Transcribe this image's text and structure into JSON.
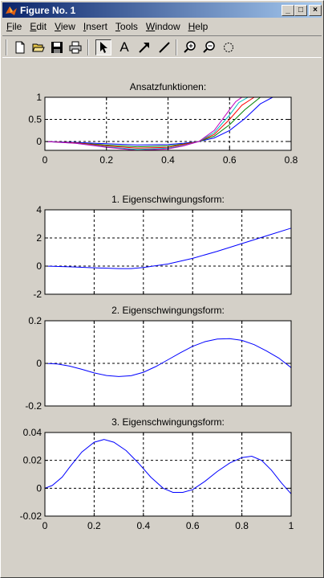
{
  "window": {
    "title": "Figure No. 1",
    "controls": {
      "minimize": "_",
      "maximize": "□",
      "close": "×"
    }
  },
  "menu": [
    {
      "u": "F",
      "rest": "ile"
    },
    {
      "u": "E",
      "rest": "dit"
    },
    {
      "u": "V",
      "rest": "iew"
    },
    {
      "u": "I",
      "rest": "nsert"
    },
    {
      "u": "T",
      "rest": "ools"
    },
    {
      "u": "W",
      "rest": "indow"
    },
    {
      "u": "H",
      "rest": "elp"
    }
  ],
  "toolbar": {
    "icons": [
      "new-file-icon",
      "open-folder-icon",
      "save-icon",
      "print-icon",
      "arrow-select-icon",
      "text-insert-icon",
      "arrow-insert-icon",
      "line-insert-icon",
      "zoom-in-icon",
      "zoom-out-icon",
      "rotate-icon"
    ],
    "text_tool_label": "A"
  },
  "chart_data": [
    {
      "type": "line",
      "title": "Ansatzfunktionen:",
      "xlim": [
        0,
        0.8
      ],
      "ylim": [
        -0.2,
        1
      ],
      "xticks": [
        "0",
        "0.2",
        "0.4",
        "0.6",
        "0.8"
      ],
      "yticks": [
        "0",
        "0.5",
        "1"
      ],
      "grid": true,
      "series": [
        {
          "color": "#0000ff",
          "x": [
            0,
            0.1,
            0.2,
            0.3,
            0.4,
            0.45,
            0.5,
            0.55,
            0.6,
            0.65,
            0.7,
            0.74
          ],
          "y": [
            0,
            -0.02,
            -0.05,
            -0.08,
            -0.07,
            -0.04,
            0,
            0.08,
            0.25,
            0.52,
            0.85,
            1.0
          ]
        },
        {
          "color": "#008000",
          "x": [
            0,
            0.1,
            0.2,
            0.3,
            0.4,
            0.45,
            0.5,
            0.55,
            0.6,
            0.65,
            0.7
          ],
          "y": [
            0,
            -0.03,
            -0.08,
            -0.12,
            -0.1,
            -0.06,
            0,
            0.12,
            0.38,
            0.72,
            1.0
          ]
        },
        {
          "color": "#ff0000",
          "x": [
            0,
            0.1,
            0.2,
            0.3,
            0.4,
            0.45,
            0.5,
            0.55,
            0.6,
            0.64,
            0.68
          ],
          "y": [
            0,
            -0.03,
            -0.1,
            -0.15,
            -0.13,
            -0.07,
            0,
            0.16,
            0.5,
            0.82,
            1.0
          ]
        },
        {
          "color": "#00bfbf",
          "x": [
            0,
            0.1,
            0.2,
            0.3,
            0.4,
            0.45,
            0.5,
            0.55,
            0.6,
            0.63,
            0.66
          ],
          "y": [
            0,
            -0.04,
            -0.12,
            -0.18,
            -0.15,
            -0.09,
            0,
            0.2,
            0.6,
            0.88,
            1.0
          ]
        },
        {
          "color": "#bf00bf",
          "x": [
            0,
            0.1,
            0.2,
            0.3,
            0.4,
            0.45,
            0.5,
            0.55,
            0.6,
            0.62,
            0.64
          ],
          "y": [
            0,
            -0.04,
            -0.13,
            -0.2,
            -0.17,
            -0.1,
            0,
            0.25,
            0.72,
            0.9,
            1.0
          ]
        }
      ]
    },
    {
      "type": "line",
      "title": "1. Eigenschwingungsform:",
      "xlim": [
        0,
        1
      ],
      "ylim": [
        -2,
        4
      ],
      "xticks": [],
      "yticks": [
        "-2",
        "0",
        "2",
        "4"
      ],
      "grid": true,
      "series": [
        {
          "color": "#0000ff",
          "x": [
            0,
            0.1,
            0.2,
            0.3,
            0.35,
            0.4,
            0.5,
            0.6,
            0.7,
            0.8,
            0.9,
            1.0
          ],
          "y": [
            0,
            -0.05,
            -0.12,
            -0.18,
            -0.18,
            -0.1,
            0.15,
            0.55,
            1.05,
            1.6,
            2.15,
            2.7
          ]
        }
      ]
    },
    {
      "type": "line",
      "title": "2. Eigenschwingungsform:",
      "xlim": [
        0,
        1
      ],
      "ylim": [
        -0.2,
        0.2
      ],
      "xticks": [],
      "yticks": [
        "-0.2",
        "0",
        "0.2"
      ],
      "grid": true,
      "series": [
        {
          "color": "#0000ff",
          "x": [
            0,
            0.05,
            0.1,
            0.15,
            0.2,
            0.25,
            0.3,
            0.35,
            0.4,
            0.45,
            0.5,
            0.55,
            0.6,
            0.65,
            0.7,
            0.75,
            0.8,
            0.85,
            0.9,
            0.95,
            1.0
          ],
          "y": [
            0,
            -0.003,
            -0.013,
            -0.028,
            -0.045,
            -0.057,
            -0.062,
            -0.058,
            -0.042,
            -0.015,
            0.017,
            0.05,
            0.08,
            0.102,
            0.114,
            0.116,
            0.108,
            0.088,
            0.058,
            0.025,
            -0.02
          ]
        }
      ]
    },
    {
      "type": "line",
      "title": "3. Eigenschwingungsform:",
      "xlim": [
        0,
        1
      ],
      "ylim": [
        -0.02,
        0.04
      ],
      "xticks": [
        "0",
        "0.2",
        "0.4",
        "0.6",
        "0.8",
        "1"
      ],
      "yticks": [
        "-0.02",
        "0",
        "0.02",
        "0.04"
      ],
      "grid": true,
      "series": [
        {
          "color": "#0000ff",
          "x": [
            0,
            0.03,
            0.07,
            0.1,
            0.15,
            0.2,
            0.24,
            0.28,
            0.33,
            0.38,
            0.43,
            0.48,
            0.52,
            0.56,
            0.6,
            0.65,
            0.7,
            0.75,
            0.8,
            0.84,
            0.88,
            0.92,
            0.96,
            1.0
          ],
          "y": [
            0,
            0.002,
            0.008,
            0.015,
            0.026,
            0.033,
            0.035,
            0.033,
            0.027,
            0.018,
            0.008,
            0.0,
            -0.003,
            -0.003,
            -0.001,
            0.005,
            0.012,
            0.018,
            0.022,
            0.023,
            0.02,
            0.013,
            0.004,
            -0.004
          ]
        }
      ]
    }
  ]
}
